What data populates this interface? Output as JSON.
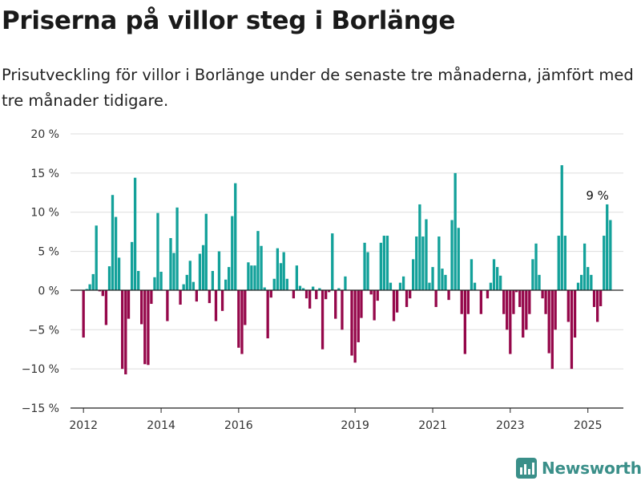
{
  "title": "Priserna på villor steg i Borlänge",
  "subtitle": "Prisutveckling för villor i Borlänge under de senaste tre månaderna, jämfört med tre månader tidigare.",
  "brand": {
    "name": "Newsworthy"
  },
  "colors": {
    "positive": "#13a19a",
    "negative": "#95074a",
    "axis": "#222222",
    "grid": "#dddddd",
    "brand": "#3a8f89"
  },
  "chart_data": {
    "type": "bar",
    "title": "",
    "xlabel": "",
    "ylabel": "",
    "ylim": [
      -15,
      20
    ],
    "xlim": [
      "2011-09-01",
      "2025-12-01"
    ],
    "grid": true,
    "legend": "none",
    "yticks": [
      {
        "value": 20,
        "label": "20 %"
      },
      {
        "value": 15,
        "label": "15 %"
      },
      {
        "value": 10,
        "label": "10 %"
      },
      {
        "value": 5,
        "label": "5 %"
      },
      {
        "value": 0,
        "label": "0 %"
      },
      {
        "value": -5,
        "label": "−5 %"
      },
      {
        "value": -10,
        "label": "−10 %"
      },
      {
        "value": -15,
        "label": "−15 %"
      }
    ],
    "xticks": [
      {
        "date": "2012-01-01",
        "label": "2012"
      },
      {
        "date": "2014-01-01",
        "label": "2014"
      },
      {
        "date": "2016-01-01",
        "label": "2016"
      },
      {
        "date": "2019-01-01",
        "label": "2019"
      },
      {
        "date": "2021-01-01",
        "label": "2021"
      },
      {
        "date": "2023-01-01",
        "label": "2023"
      },
      {
        "date": "2025-01-01",
        "label": "2025"
      }
    ],
    "annotations": [
      {
        "date": "2025-04-01",
        "value": 11,
        "label": "9 %"
      }
    ],
    "series": [
      {
        "points": [
          [
            "2012-01-01",
            -6.0
          ],
          [
            "2012-02-01",
            0.2
          ],
          [
            "2012-03-01",
            0.8
          ],
          [
            "2012-04-01",
            2.1
          ],
          [
            "2012-05-01",
            8.3
          ],
          [
            "2012-06-01",
            -0.1
          ],
          [
            "2012-07-01",
            -0.7
          ],
          [
            "2012-08-01",
            -4.4
          ],
          [
            "2012-09-01",
            3.1
          ],
          [
            "2012-10-01",
            12.2
          ],
          [
            "2012-11-01",
            9.4
          ],
          [
            "2012-12-01",
            4.2
          ],
          [
            "2013-01-01",
            -10.0
          ],
          [
            "2013-02-01",
            -10.7
          ],
          [
            "2013-03-01",
            -3.6
          ],
          [
            "2013-04-01",
            6.2
          ],
          [
            "2013-05-01",
            14.4
          ],
          [
            "2013-06-01",
            2.5
          ],
          [
            "2013-07-01",
            -4.3
          ],
          [
            "2013-08-01",
            -9.4
          ],
          [
            "2013-09-01",
            -9.5
          ],
          [
            "2013-10-01",
            -1.7
          ],
          [
            "2013-11-01",
            1.7
          ],
          [
            "2013-12-01",
            9.9
          ],
          [
            "2014-01-01",
            2.4
          ],
          [
            "2014-02-01",
            0.1
          ],
          [
            "2014-03-01",
            -3.9
          ],
          [
            "2014-04-01",
            6.7
          ],
          [
            "2014-05-01",
            4.8
          ],
          [
            "2014-06-01",
            10.6
          ],
          [
            "2014-07-01",
            -1.8
          ],
          [
            "2014-08-01",
            0.8
          ],
          [
            "2014-09-01",
            2.0
          ],
          [
            "2014-10-01",
            3.8
          ],
          [
            "2014-11-01",
            1.1
          ],
          [
            "2014-12-01",
            -1.4
          ],
          [
            "2015-01-01",
            4.7
          ],
          [
            "2015-02-01",
            5.8
          ],
          [
            "2015-03-01",
            9.8
          ],
          [
            "2015-04-01",
            -1.6
          ],
          [
            "2015-05-01",
            2.5
          ],
          [
            "2015-06-01",
            -3.9
          ],
          [
            "2015-07-01",
            5.0
          ],
          [
            "2015-08-01",
            -2.6
          ],
          [
            "2015-09-01",
            1.4
          ],
          [
            "2015-10-01",
            3.0
          ],
          [
            "2015-11-01",
            9.5
          ],
          [
            "2015-12-01",
            13.7
          ],
          [
            "2016-01-01",
            -7.3
          ],
          [
            "2016-02-01",
            -8.1
          ],
          [
            "2016-03-01",
            -4.4
          ],
          [
            "2016-04-01",
            3.6
          ],
          [
            "2016-05-01",
            3.2
          ],
          [
            "2016-06-01",
            3.2
          ],
          [
            "2016-07-01",
            7.6
          ],
          [
            "2016-08-01",
            5.7
          ],
          [
            "2016-09-01",
            0.4
          ],
          [
            "2016-10-01",
            -6.1
          ],
          [
            "2016-11-01",
            -0.9
          ],
          [
            "2016-12-01",
            1.5
          ],
          [
            "2017-01-01",
            5.4
          ],
          [
            "2017-02-01",
            3.5
          ],
          [
            "2017-03-01",
            4.9
          ],
          [
            "2017-04-01",
            1.5
          ],
          [
            "2017-05-01",
            0.1
          ],
          [
            "2017-06-01",
            -1.0
          ],
          [
            "2017-07-01",
            3.2
          ],
          [
            "2017-08-01",
            0.6
          ],
          [
            "2017-09-01",
            0.3
          ],
          [
            "2017-10-01",
            -1.0
          ],
          [
            "2017-11-01",
            -2.3
          ],
          [
            "2017-12-01",
            0.5
          ],
          [
            "2018-01-01",
            -1.1
          ],
          [
            "2018-02-01",
            0.3
          ],
          [
            "2018-03-01",
            -7.5
          ],
          [
            "2018-04-01",
            -1.1
          ],
          [
            "2018-05-01",
            -0.2
          ],
          [
            "2018-06-01",
            7.3
          ],
          [
            "2018-07-01",
            -3.6
          ],
          [
            "2018-08-01",
            0.3
          ],
          [
            "2018-09-01",
            -5.0
          ],
          [
            "2018-10-01",
            1.8
          ],
          [
            "2018-11-01",
            0.1
          ],
          [
            "2018-12-01",
            -8.3
          ],
          [
            "2019-01-01",
            -9.2
          ],
          [
            "2019-02-01",
            -6.6
          ],
          [
            "2019-03-01",
            -3.5
          ],
          [
            "2019-04-01",
            6.1
          ],
          [
            "2019-05-01",
            4.9
          ],
          [
            "2019-06-01",
            -0.5
          ],
          [
            "2019-07-01",
            -3.8
          ],
          [
            "2019-08-01",
            -1.3
          ],
          [
            "2019-09-01",
            6.1
          ],
          [
            "2019-10-01",
            7.0
          ],
          [
            "2019-11-01",
            7.0
          ],
          [
            "2019-12-01",
            1.0
          ],
          [
            "2020-01-01",
            -3.9
          ],
          [
            "2020-02-01",
            -2.8
          ],
          [
            "2020-03-01",
            1.0
          ],
          [
            "2020-04-01",
            1.8
          ],
          [
            "2020-05-01",
            -2.1
          ],
          [
            "2020-06-01",
            -1.0
          ],
          [
            "2020-07-01",
            4.0
          ],
          [
            "2020-08-01",
            6.9
          ],
          [
            "2020-09-01",
            11.0
          ],
          [
            "2020-10-01",
            6.9
          ],
          [
            "2020-11-01",
            9.1
          ],
          [
            "2020-12-01",
            1.0
          ],
          [
            "2021-01-01",
            3.0
          ],
          [
            "2021-02-01",
            -2.1
          ],
          [
            "2021-03-01",
            6.9
          ],
          [
            "2021-04-01",
            2.8
          ],
          [
            "2021-05-01",
            2.0
          ],
          [
            "2021-06-01",
            -1.2
          ],
          [
            "2021-07-01",
            9.0
          ],
          [
            "2021-08-01",
            15.0
          ],
          [
            "2021-09-01",
            8.0
          ],
          [
            "2021-10-01",
            -3.0
          ],
          [
            "2021-11-01",
            -8.1
          ],
          [
            "2021-12-01",
            -3.0
          ],
          [
            "2022-01-01",
            4.0
          ],
          [
            "2022-02-01",
            1.0
          ],
          [
            "2022-03-01",
            0.1
          ],
          [
            "2022-04-01",
            -3.0
          ],
          [
            "2022-05-01",
            0.1
          ],
          [
            "2022-06-01",
            -1.0
          ],
          [
            "2022-07-01",
            1.0
          ],
          [
            "2022-08-01",
            4.0
          ],
          [
            "2022-09-01",
            3.0
          ],
          [
            "2022-10-01",
            1.9
          ],
          [
            "2022-11-01",
            -3.0
          ],
          [
            "2022-12-01",
            -5.0
          ],
          [
            "2023-01-01",
            -8.1
          ],
          [
            "2023-02-01",
            -3.0
          ],
          [
            "2023-03-01",
            -0.2
          ],
          [
            "2023-04-01",
            -2.1
          ],
          [
            "2023-05-01",
            -6.0
          ],
          [
            "2023-06-01",
            -5.0
          ],
          [
            "2023-07-01",
            -3.0
          ],
          [
            "2023-08-01",
            4.0
          ],
          [
            "2023-09-01",
            6.0
          ],
          [
            "2023-10-01",
            2.0
          ],
          [
            "2023-11-01",
            -1.0
          ],
          [
            "2023-12-01",
            -3.0
          ],
          [
            "2024-01-01",
            -8.0
          ],
          [
            "2024-02-01",
            -10.0
          ],
          [
            "2024-03-01",
            -5.0
          ],
          [
            "2024-04-01",
            7.0
          ],
          [
            "2024-05-01",
            16.0
          ],
          [
            "2024-06-01",
            7.0
          ],
          [
            "2024-07-01",
            -4.0
          ],
          [
            "2024-08-01",
            -10.0
          ],
          [
            "2024-09-01",
            -6.0
          ],
          [
            "2024-10-01",
            1.0
          ],
          [
            "2024-11-01",
            2.0
          ],
          [
            "2024-12-01",
            6.0
          ],
          [
            "2025-01-01",
            3.0
          ],
          [
            "2025-02-01",
            2.0
          ],
          [
            "2025-03-01",
            -2.1
          ],
          [
            "2025-04-01",
            -4.0
          ],
          [
            "2025-05-01",
            -2.0
          ],
          [
            "2025-06-01",
            7.0
          ],
          [
            "2025-07-01",
            11.0
          ],
          [
            "2025-08-01",
            9.0
          ]
        ]
      }
    ]
  }
}
